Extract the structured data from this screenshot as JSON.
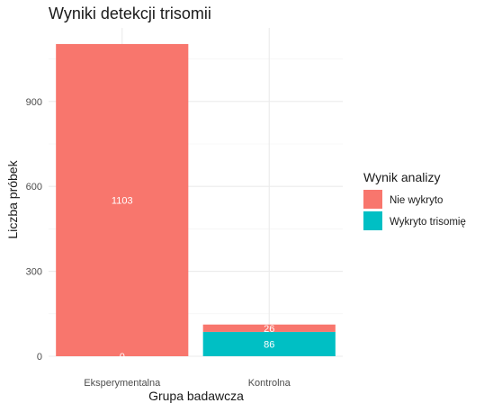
{
  "chart_data": {
    "type": "bar",
    "stacked": true,
    "title": "Wyniki detekcji trisomii",
    "xlabel": "Grupa badawcza",
    "ylabel": "Liczba próbek",
    "categories": [
      "Eksperymentalna",
      "Kontrolna"
    ],
    "series": [
      {
        "name": "Nie wykryto",
        "values": [
          1103,
          26
        ],
        "color": "#F8766D"
      },
      {
        "name": "Wykryto trisomię",
        "values": [
          0,
          86
        ],
        "color": "#00BFC4"
      }
    ],
    "data_labels": [
      [
        "1103",
        "26"
      ],
      [
        "0",
        "86"
      ]
    ],
    "ylim": [
      0,
      1160
    ],
    "yticks": [
      0,
      300,
      600,
      900
    ],
    "grid": true,
    "legend": {
      "title": "Wynik analizy",
      "position": "right"
    }
  }
}
